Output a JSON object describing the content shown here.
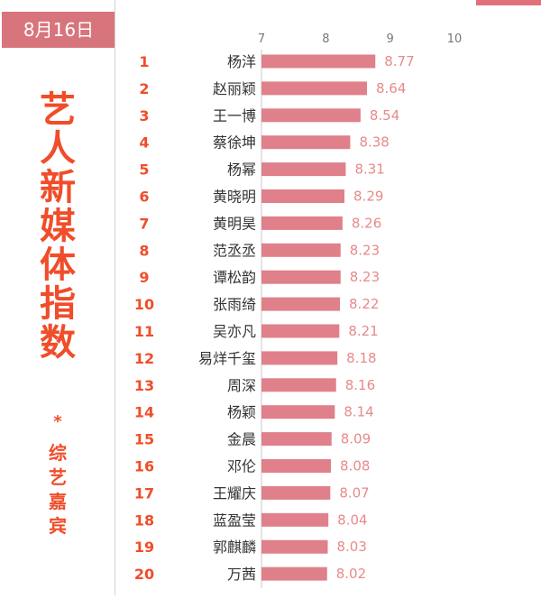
{
  "date_label": "8月16日",
  "side_title": [
    "艺",
    "人",
    "新",
    "媒",
    "体",
    "指",
    "数"
  ],
  "asterisk": "*",
  "side_subtitle": [
    "综",
    "艺",
    "嘉",
    "宾"
  ],
  "colors": {
    "bar": "#e0808a",
    "accent": "#f04d2a",
    "badge": "#d8747c"
  },
  "chart_data": {
    "type": "bar",
    "orientation": "horizontal",
    "title": "",
    "xlim": [
      7,
      10
    ],
    "xticks": [
      7,
      8,
      9,
      10
    ],
    "grid": false,
    "ranks": [
      "1",
      "2",
      "3",
      "4",
      "5",
      "6",
      "7",
      "8",
      "9",
      "10",
      "11",
      "12",
      "13",
      "14",
      "15",
      "16",
      "17",
      "18",
      "19",
      "20"
    ],
    "categories": [
      "杨洋",
      "赵丽颖",
      "王一博",
      "蔡徐坤",
      "杨幂",
      "黄晓明",
      "黄明昊",
      "范丞丞",
      "谭松韵",
      "张雨绮",
      "吴亦凡",
      "易烊千玺",
      "周深",
      "杨颖",
      "金晨",
      "邓伦",
      "王耀庆",
      "蓝盈莹",
      "郭麒麟",
      "万茜"
    ],
    "values": [
      8.77,
      8.64,
      8.54,
      8.38,
      8.31,
      8.29,
      8.26,
      8.23,
      8.23,
      8.22,
      8.21,
      8.18,
      8.16,
      8.14,
      8.09,
      8.08,
      8.07,
      8.04,
      8.03,
      8.02
    ],
    "value_labels": [
      "8.77",
      "8.64",
      "8.54",
      "8.38",
      "8.31",
      "8.29",
      "8.26",
      "8.23",
      "8.23",
      "8.22",
      "8.21",
      "8.18",
      "8.16",
      "8.14",
      "8.09",
      "8.08",
      "8.07",
      "8.04",
      "8.03",
      "8.02"
    ]
  }
}
